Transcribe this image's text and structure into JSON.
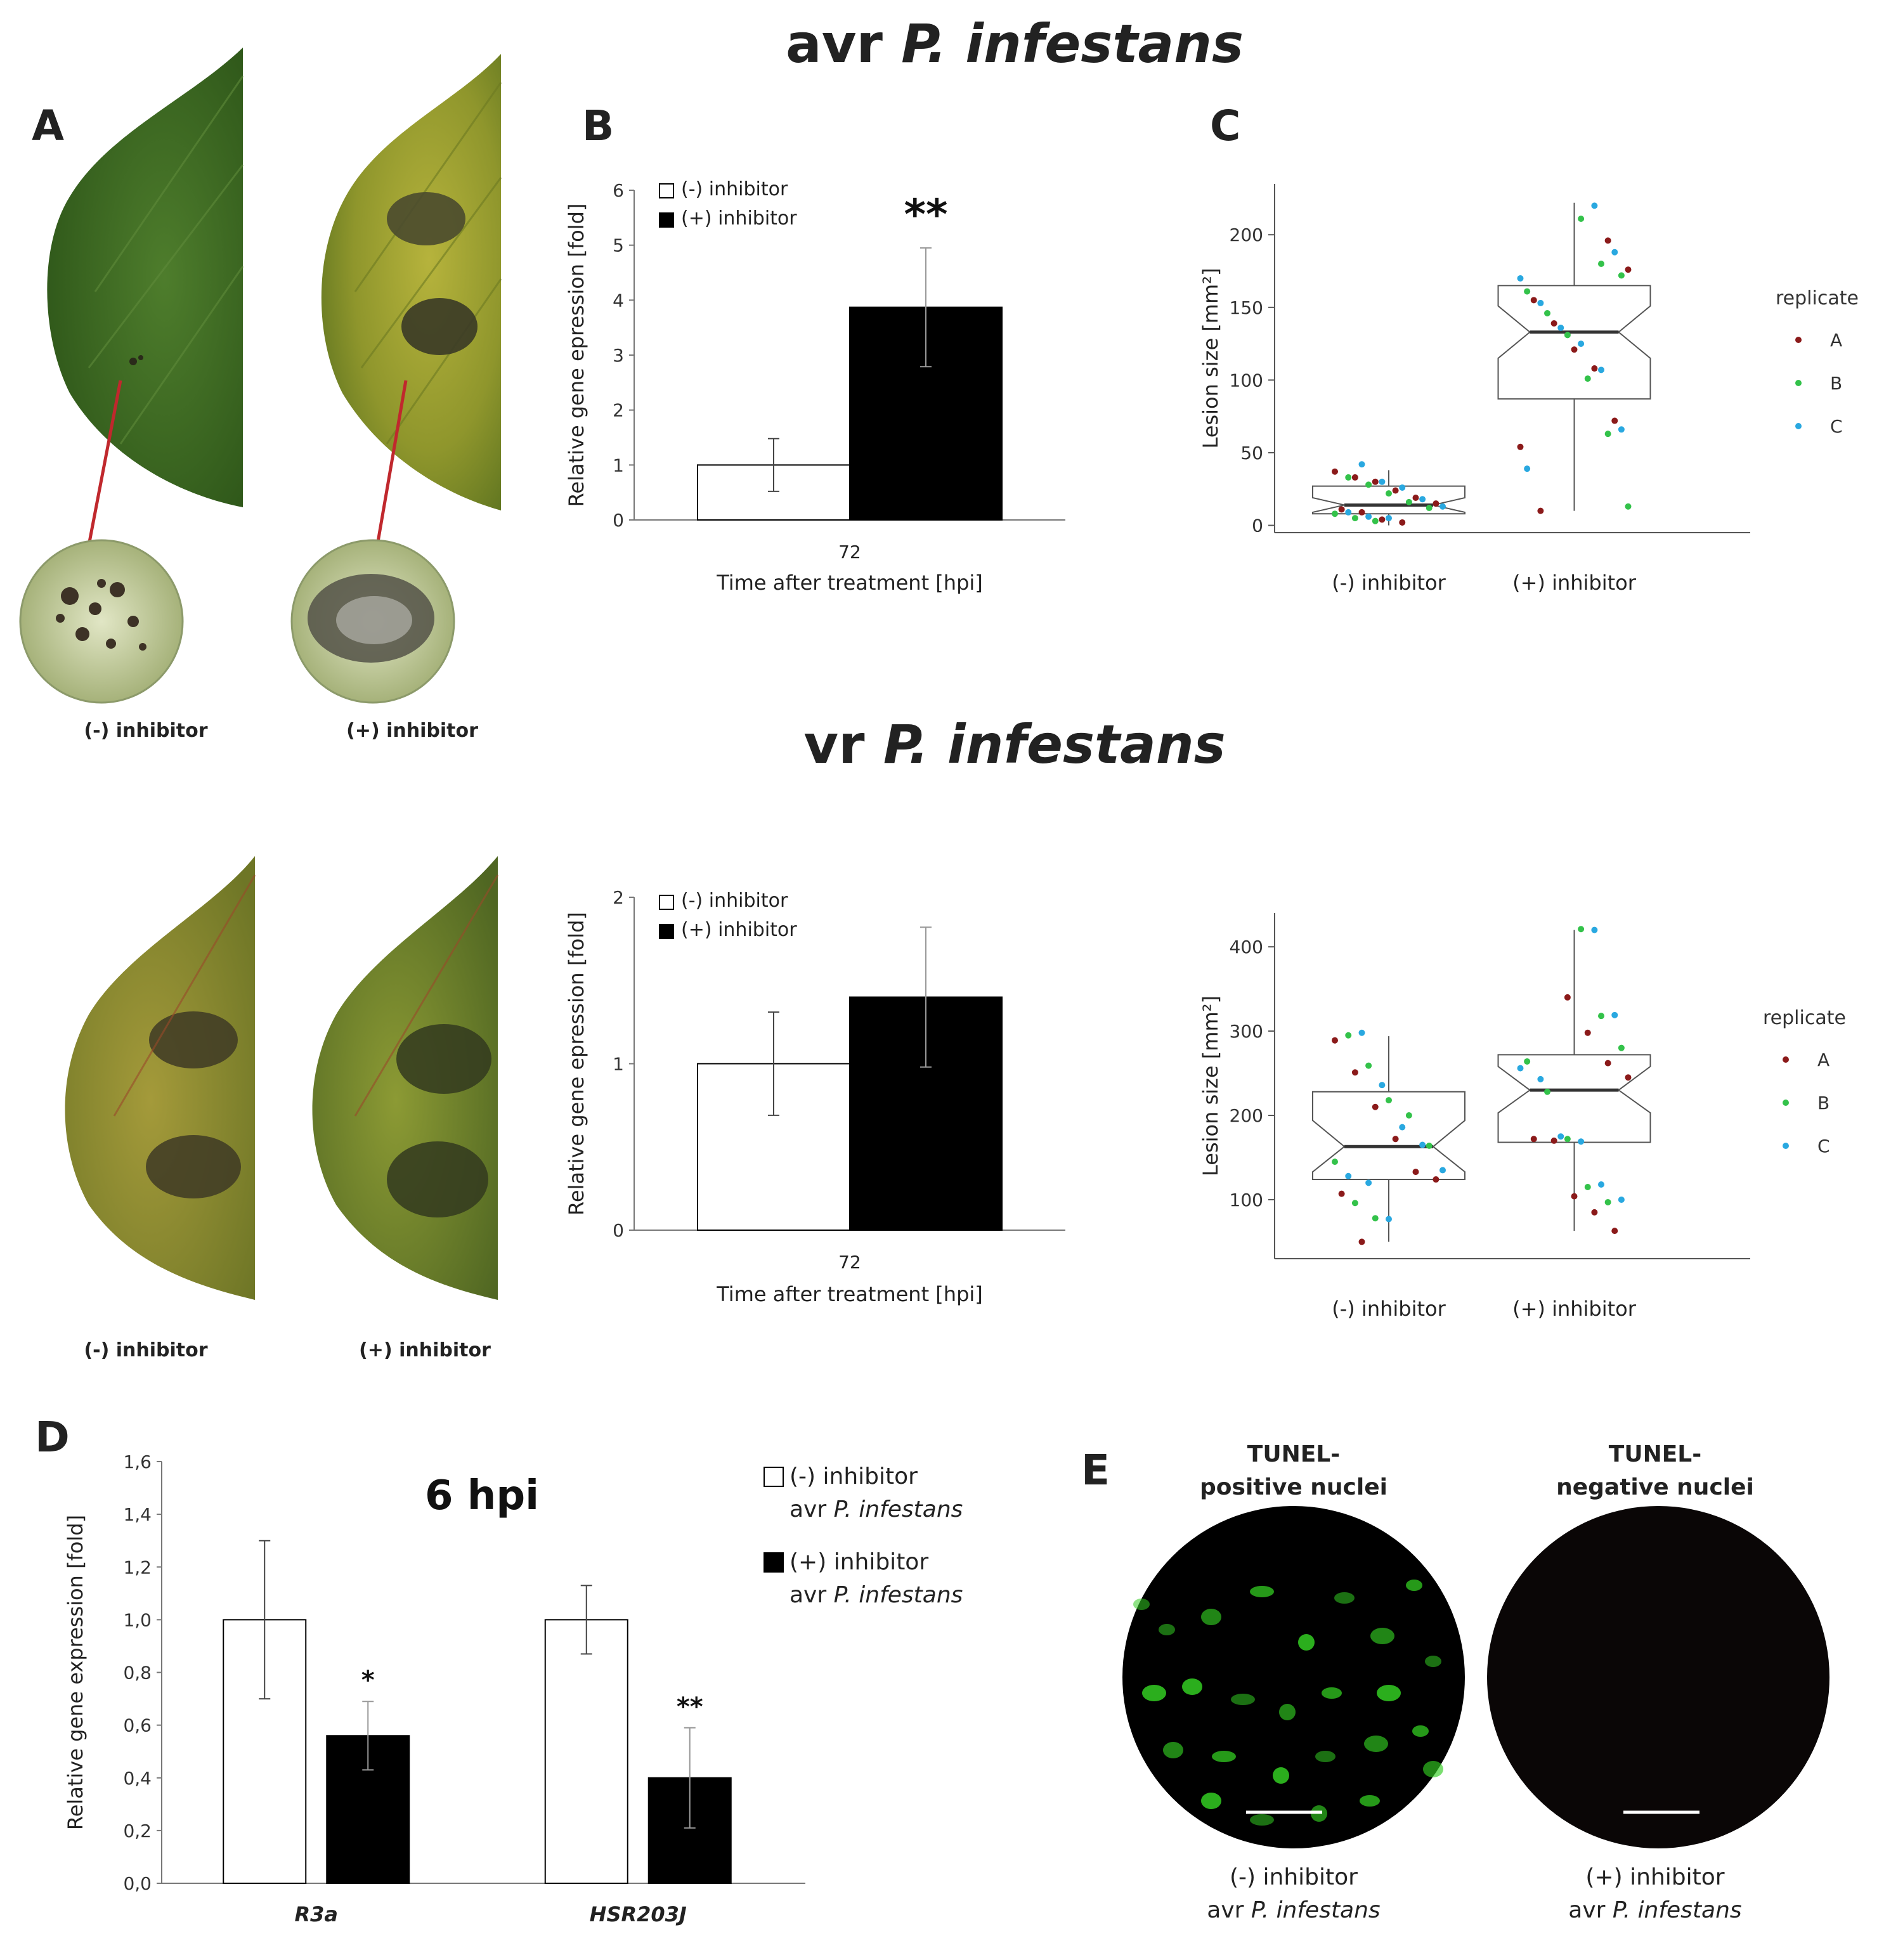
{
  "titles": {
    "avr": {
      "prefix": "avr",
      "species": "P. infestans"
    },
    "vr": {
      "prefix": "vr",
      "species": "P. infestans"
    }
  },
  "panel_labels": {
    "A": "A",
    "B": "B",
    "C": "C",
    "D": "D",
    "E": "E"
  },
  "panel_a": {
    "minus_caption": "(-) inhibitor",
    "plus_caption": "(+) inhibitor",
    "leaf_color_healthy": "#3d6b24",
    "leaf_color_yellow": "#8f9a2c",
    "lesion_color": "#3a3a2a",
    "arrow_color": "#c0282d"
  },
  "vr_leaves": {
    "minus_caption": "(-) inhibitor",
    "plus_caption": "(+) inhibitor"
  },
  "panel_e": {
    "pos_label_line1": "TUNEL-",
    "pos_label_line2": "positive nuclei",
    "neg_label_line1": "TUNEL-",
    "neg_label_line2": "negative nuclei",
    "left_caption_line1": "(-) inhibitor",
    "left_caption_line2_prefix": "avr ",
    "left_caption_line2_species": "P. infestans",
    "right_caption_line1": "(+) inhibitor",
    "right_caption_line2_prefix": "avr ",
    "right_caption_line2_species": "P. infestans",
    "nuclei_color": "#33cc22"
  },
  "chart_data": [
    {
      "id": "B_avr",
      "type": "bar",
      "panel": "B",
      "categories": [
        "72"
      ],
      "series": [
        {
          "name": "(-) inhibitor",
          "values": [
            1.0
          ],
          "error": [
            0.48
          ],
          "fill": "#ffffff"
        },
        {
          "name": "(+) inhibitor",
          "values": [
            3.87
          ],
          "error": [
            1.08
          ],
          "fill": "#000000"
        }
      ],
      "annotations": [
        "**"
      ],
      "xlabel": "Time after treatment [hpi]",
      "ylabel": "Relative gene epression [fold]",
      "ylim": [
        0,
        6
      ],
      "yticks": [
        "0",
        "1",
        "2",
        "3",
        "4",
        "5",
        "6"
      ],
      "legend": "top-left",
      "grid": false
    },
    {
      "id": "C_avr",
      "type": "scatter",
      "subtype": "notched boxplot with jittered points",
      "panel": "C",
      "categories": [
        "(-) inhibitor",
        "(+) inhibitor"
      ],
      "boxes": [
        {
          "q1": 8,
          "median": 14,
          "q3": 27,
          "whisker_low": 0,
          "whisker_high": 38,
          "notch_low": 9,
          "notch_high": 19
        },
        {
          "q1": 87,
          "median": 133,
          "q3": 165,
          "whisker_low": 10,
          "whisker_high": 222,
          "notch_low": 115,
          "notch_high": 151
        }
      ],
      "legend_title": "replicate",
      "series": [
        {
          "name": "A",
          "color": "#8b1a1a",
          "points": [
            [
              0,
              37
            ],
            [
              0,
              33
            ],
            [
              0,
              30
            ],
            [
              0,
              24
            ],
            [
              0,
              19
            ],
            [
              0,
              15
            ],
            [
              0,
              11
            ],
            [
              0,
              9
            ],
            [
              0,
              4
            ],
            [
              0,
              2
            ],
            [
              1,
              196
            ],
            [
              1,
              176
            ],
            [
              1,
              155
            ],
            [
              1,
              139
            ],
            [
              1,
              121
            ],
            [
              1,
              108
            ],
            [
              1,
              72
            ],
            [
              1,
              54
            ],
            [
              1,
              10
            ]
          ]
        },
        {
          "name": "B",
          "color": "#33c24a",
          "points": [
            [
              0,
              33
            ],
            [
              0,
              28
            ],
            [
              0,
              22
            ],
            [
              0,
              16
            ],
            [
              0,
              12
            ],
            [
              0,
              8
            ],
            [
              0,
              5
            ],
            [
              0,
              3
            ],
            [
              1,
              211
            ],
            [
              1,
              180
            ],
            [
              1,
              172
            ],
            [
              1,
              161
            ],
            [
              1,
              146
            ],
            [
              1,
              131
            ],
            [
              1,
              101
            ],
            [
              1,
              63
            ],
            [
              1,
              13
            ]
          ]
        },
        {
          "name": "C",
          "color": "#29a8e0",
          "points": [
            [
              0,
              42
            ],
            [
              0,
              30
            ],
            [
              0,
              26
            ],
            [
              0,
              18
            ],
            [
              0,
              13
            ],
            [
              0,
              9
            ],
            [
              0,
              6
            ],
            [
              0,
              5
            ],
            [
              1,
              220
            ],
            [
              1,
              188
            ],
            [
              1,
              170
            ],
            [
              1,
              153
            ],
            [
              1,
              136
            ],
            [
              1,
              125
            ],
            [
              1,
              107
            ],
            [
              1,
              66
            ],
            [
              1,
              39
            ]
          ]
        }
      ],
      "ylabel": "Lesion size [mm²]",
      "ylim": [
        -5,
        235
      ],
      "yticks": [
        "0",
        "50",
        "100",
        "150",
        "200"
      ],
      "legend": "right",
      "grid": false
    },
    {
      "id": "B_vr",
      "type": "bar",
      "panel": "B",
      "categories": [
        "72"
      ],
      "series": [
        {
          "name": "(-) inhibitor",
          "values": [
            1.0
          ],
          "error": [
            0.31
          ],
          "fill": "#ffffff"
        },
        {
          "name": "(+) inhibitor",
          "values": [
            1.4
          ],
          "error": [
            0.42
          ],
          "fill": "#000000"
        }
      ],
      "xlabel": "Time after treatment [hpi]",
      "ylabel": "Relative gene epression [fold]",
      "ylim": [
        0,
        2
      ],
      "yticks": [
        "0",
        "1",
        "2"
      ],
      "legend": "top-left",
      "grid": false
    },
    {
      "id": "C_vr",
      "type": "scatter",
      "subtype": "notched boxplot with jittered points",
      "panel": "C",
      "categories": [
        "(-) inhibitor",
        "(+) inhibitor"
      ],
      "boxes": [
        {
          "q1": 124,
          "median": 163,
          "q3": 228,
          "whisker_low": 50,
          "whisker_high": 294,
          "notch_low": 133,
          "notch_high": 194
        },
        {
          "q1": 168,
          "median": 230,
          "q3": 272,
          "whisker_low": 63,
          "whisker_high": 420,
          "notch_low": 203,
          "notch_high": 258
        }
      ],
      "legend_title": "replicate",
      "series": [
        {
          "name": "A",
          "color": "#8b1a1a",
          "points": [
            [
              0,
              289
            ],
            [
              0,
              251
            ],
            [
              0,
              210
            ],
            [
              0,
              172
            ],
            [
              0,
              133
            ],
            [
              0,
              124
            ],
            [
              0,
              107
            ],
            [
              0,
              50
            ],
            [
              1,
              340
            ],
            [
              1,
              298
            ],
            [
              1,
              262
            ],
            [
              1,
              245
            ],
            [
              1,
              172
            ],
            [
              1,
              170
            ],
            [
              1,
              104
            ],
            [
              1,
              85
            ],
            [
              1,
              63
            ]
          ]
        },
        {
          "name": "B",
          "color": "#33c24a",
          "points": [
            [
              0,
              295
            ],
            [
              0,
              259
            ],
            [
              0,
              218
            ],
            [
              0,
              200
            ],
            [
              0,
              164
            ],
            [
              0,
              145
            ],
            [
              0,
              96
            ],
            [
              0,
              78
            ],
            [
              1,
              421
            ],
            [
              1,
              318
            ],
            [
              1,
              280
            ],
            [
              1,
              264
            ],
            [
              1,
              228
            ],
            [
              1,
              172
            ],
            [
              1,
              115
            ],
            [
              1,
              97
            ]
          ]
        },
        {
          "name": "C",
          "color": "#29a8e0",
          "points": [
            [
              0,
              298
            ],
            [
              0,
              236
            ],
            [
              0,
              186
            ],
            [
              0,
              165
            ],
            [
              0,
              135
            ],
            [
              0,
              128
            ],
            [
              0,
              120
            ],
            [
              0,
              77
            ],
            [
              1,
              420
            ],
            [
              1,
              319
            ],
            [
              1,
              256
            ],
            [
              1,
              243
            ],
            [
              1,
              175
            ],
            [
              1,
              169
            ],
            [
              1,
              118
            ],
            [
              1,
              100
            ]
          ]
        }
      ],
      "ylabel": "Lesion size [mm²]",
      "ylim": [
        30,
        440
      ],
      "yticks": [
        "100",
        "200",
        "300",
        "400"
      ],
      "legend": "right",
      "grid": false
    },
    {
      "id": "D",
      "type": "bar",
      "panel": "D",
      "title": "6 hpi",
      "categories": [
        "R3a",
        "HSR203J"
      ],
      "series": [
        {
          "name": "(-) inhibitor avr P. infestans",
          "values": [
            1.0,
            1.0
          ],
          "error": [
            0.3,
            0.13
          ],
          "fill": "#ffffff"
        },
        {
          "name": "(+) inhibitor avr P. infestans",
          "values": [
            0.56,
            0.4
          ],
          "error": [
            0.13,
            0.19
          ],
          "fill": "#000000"
        }
      ],
      "annotations": [
        "*",
        "**"
      ],
      "ylabel": "Relative gene expression [fold]",
      "ylim": [
        0,
        1.6
      ],
      "yticks": [
        "0,0",
        "0,2",
        "0,4",
        "0,6",
        "0,8",
        "1,0",
        "1,2",
        "1,4",
        "1,6"
      ],
      "legend": "top-right",
      "grid": false
    }
  ]
}
